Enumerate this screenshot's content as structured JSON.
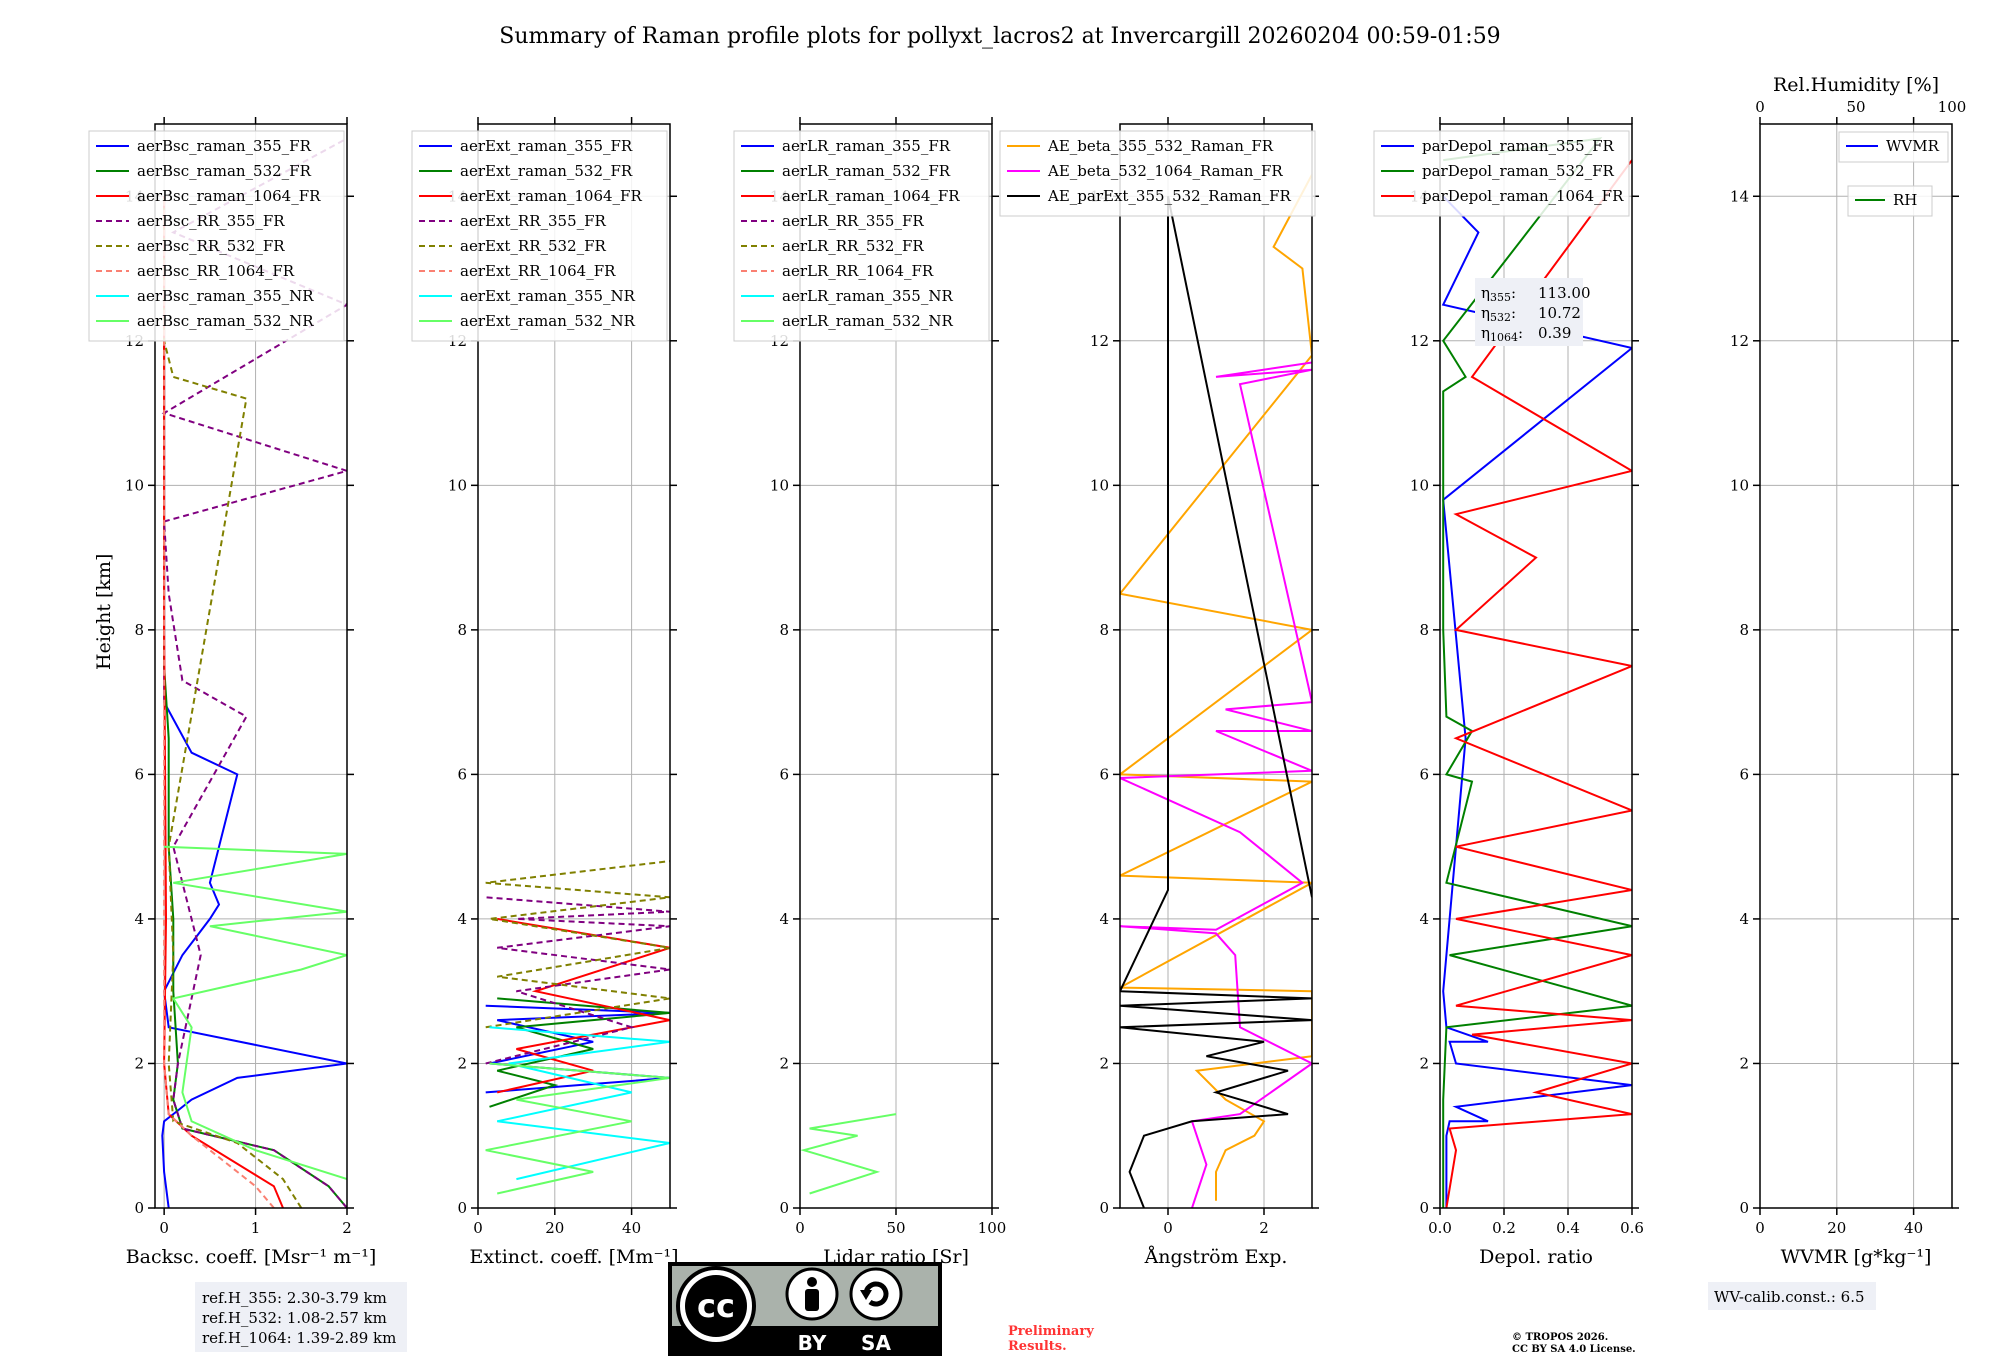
{
  "title": "Summary of Raman profile plots for pollyxt_lacros2 at Invercargill 20260204 00:59-01:59",
  "colors": {
    "blue": "#0000ff",
    "green": "#008000",
    "red": "#ff0000",
    "purple": "#800080",
    "olive": "#808000",
    "salmon": "#fa8072",
    "cyan": "#00ffff",
    "lightgreen": "#66ff66",
    "orange": "#ffa500",
    "magenta": "#ff00ff",
    "black": "#000000"
  },
  "chart_data": [
    {
      "type": "line",
      "title": "",
      "xlabel": "Backsc. coeff. [Msr⁻¹ m⁻¹]",
      "ylabel": "Height [km]",
      "xlim": [
        -0.1,
        2
      ],
      "ylim": [
        0,
        15
      ],
      "xticks": [
        "0",
        "1",
        "2"
      ],
      "yticks": [
        "0",
        "2",
        "4",
        "6",
        "8",
        "10",
        "12",
        "14"
      ],
      "legend": [
        "aerBsc_raman_355_FR",
        "aerBsc_raman_532_FR",
        "aerBsc_raman_1064_FR",
        "aerBsc_RR_355_FR",
        "aerBsc_RR_532_FR",
        "aerBsc_RR_1064_FR",
        "aerBsc_raman_355_NR",
        "aerBsc_raman_532_NR"
      ],
      "series": [
        {
          "name": "aerBsc_raman_355_FR",
          "color": "blue",
          "dash": false,
          "x": [
            0.05,
            0.0,
            -0.02,
            0.0,
            0.1,
            0.3,
            0.8,
            2.0,
            0.05,
            0.0,
            0.2,
            0.5,
            0.6,
            0.5,
            0.8,
            0.3,
            0.0,
            0.0,
            0.0,
            0.0,
            0.0,
            0.0
          ],
          "y": [
            0,
            0.5,
            1.0,
            1.2,
            1.3,
            1.5,
            1.8,
            2.0,
            2.5,
            3.0,
            3.5,
            4.0,
            4.2,
            4.5,
            6.0,
            6.3,
            7.0,
            8.0,
            9.5,
            11.0,
            12.0,
            14.0
          ]
        },
        {
          "name": "aerBsc_raman_532_FR",
          "color": "green",
          "dash": false,
          "x": [
            2.0,
            1.8,
            1.2,
            0.2,
            0.1,
            0.15,
            0.1,
            0.1,
            0.05,
            0.05,
            0.0,
            0.0,
            0.0,
            0.0
          ],
          "y": [
            0,
            0.3,
            0.8,
            1.1,
            1.5,
            2.0,
            3.0,
            4.0,
            5.0,
            6.5,
            7.5,
            9.0,
            11.5,
            14.0
          ]
        },
        {
          "name": "aerBsc_raman_1064_FR",
          "color": "red",
          "dash": false,
          "x": [
            1.3,
            1.2,
            0.3,
            0.05,
            0.0,
            0.02,
            0.01,
            0.0,
            0.0,
            0.0,
            0.0
          ],
          "y": [
            0,
            0.3,
            1.0,
            1.3,
            2.0,
            4.0,
            6.0,
            8.0,
            10.0,
            12.0,
            14.0
          ]
        },
        {
          "name": "aerBsc_RR_355_FR",
          "color": "purple",
          "dash": true,
          "x": [
            2.0,
            1.8,
            1.2,
            0.2,
            0.1,
            0.15,
            0.4,
            0.1,
            0.9,
            0.2,
            0.05,
            0.0,
            2.0,
            0.0,
            2.0,
            0.1,
            2.0
          ],
          "y": [
            0,
            0.3,
            0.8,
            1.1,
            1.5,
            2.0,
            3.5,
            5.0,
            6.8,
            7.3,
            8.5,
            9.5,
            10.2,
            11.0,
            12.5,
            13.5,
            14.8
          ]
        },
        {
          "name": "aerBsc_RR_532_FR",
          "color": "olive",
          "dash": true,
          "x": [
            1.5,
            1.3,
            0.8,
            0.1,
            0.05,
            0.1,
            0.05,
            0.9,
            0.1,
            0.0,
            0.0,
            0.0
          ],
          "y": [
            0,
            0.4,
            0.9,
            1.2,
            2.0,
            3.5,
            5.0,
            11.2,
            11.5,
            12.0,
            13.0,
            14.0
          ]
        },
        {
          "name": "aerBsc_RR_1064_FR",
          "color": "salmon",
          "dash": true,
          "x": [
            1.2,
            1.0,
            0.3,
            0.05,
            0.0,
            0.0
          ],
          "y": [
            0,
            0.3,
            1.0,
            1.3,
            2.0,
            14.0
          ]
        },
        {
          "name": "aerBsc_raman_355_NR",
          "color": "cyan",
          "dash": false,
          "x": [],
          "y": []
        },
        {
          "name": "aerBsc_raman_532_NR",
          "color": "lightgreen",
          "dash": false,
          "x": [
            2.0,
            1.0,
            0.3,
            0.2,
            0.3,
            0.1,
            1.5,
            2.0,
            0.5,
            2.0,
            0.1,
            2.0,
            0.0
          ],
          "y": [
            0.4,
            0.8,
            1.2,
            1.6,
            2.5,
            2.9,
            3.3,
            3.5,
            3.9,
            4.1,
            4.5,
            4.9,
            5.0
          ]
        }
      ]
    },
    {
      "type": "line",
      "xlabel": "Extinct. coeff. [Mm⁻¹]",
      "xlim": [
        0,
        50
      ],
      "ylim": [
        0,
        15
      ],
      "xticks": [
        "0",
        "20",
        "40"
      ],
      "yticks": [
        "0",
        "2",
        "4",
        "6",
        "8",
        "10",
        "12",
        "14"
      ],
      "legend": [
        "aerExt_raman_355_FR",
        "aerExt_raman_532_FR",
        "aerExt_raman_1064_FR",
        "aerExt_RR_355_FR",
        "aerExt_RR_532_FR",
        "aerExt_RR_1064_FR",
        "aerExt_raman_355_NR",
        "aerExt_raman_532_NR"
      ],
      "series": [
        {
          "name": "aerExt_raman_355_FR",
          "color": "blue",
          "dash": false,
          "x": [
            2,
            50,
            3,
            30,
            5,
            50,
            2
          ],
          "y": [
            1.6,
            1.8,
            2.0,
            2.3,
            2.6,
            2.7,
            2.8
          ]
        },
        {
          "name": "aerExt_raman_532_FR",
          "color": "green",
          "dash": false,
          "x": [
            3,
            20,
            5,
            30,
            10,
            50,
            5
          ],
          "y": [
            1.4,
            1.7,
            1.9,
            2.2,
            2.5,
            2.7,
            2.9
          ]
        },
        {
          "name": "aerExt_raman_1064_FR",
          "color": "red",
          "dash": false,
          "x": [
            5,
            30,
            10,
            50,
            15,
            50,
            5
          ],
          "y": [
            1.6,
            1.9,
            2.2,
            2.6,
            3.0,
            3.6,
            4.0
          ]
        },
        {
          "name": "aerExt_RR_355_FR",
          "color": "purple",
          "dash": true,
          "x": [
            2,
            40,
            10,
            50,
            5,
            50,
            10,
            50,
            2
          ],
          "y": [
            2.0,
            2.5,
            3.0,
            3.3,
            3.6,
            3.9,
            4.0,
            4.1,
            4.3
          ]
        },
        {
          "name": "aerExt_RR_532_FR",
          "color": "olive",
          "dash": true,
          "x": [
            2,
            50,
            5,
            50,
            3,
            50,
            2,
            50
          ],
          "y": [
            2.5,
            2.9,
            3.2,
            3.6,
            4.0,
            4.3,
            4.5,
            4.8
          ]
        },
        {
          "name": "aerExt_RR_1064_FR",
          "color": "salmon",
          "dash": true,
          "x": [],
          "y": []
        },
        {
          "name": "aerExt_raman_355_NR",
          "color": "cyan",
          "dash": false,
          "x": [
            10,
            50,
            5,
            40,
            8,
            50,
            3
          ],
          "y": [
            0.4,
            0.9,
            1.2,
            1.6,
            2.0,
            2.3,
            2.5
          ]
        },
        {
          "name": "aerExt_raman_532_NR",
          "color": "lightgreen",
          "dash": false,
          "x": [
            5,
            30,
            2,
            40,
            10,
            50,
            3
          ],
          "y": [
            0.2,
            0.5,
            0.8,
            1.2,
            1.5,
            1.8,
            2.0
          ]
        }
      ]
    },
    {
      "type": "line",
      "xlabel": "Lidar ratio [Sr]",
      "xlim": [
        0,
        100
      ],
      "ylim": [
        0,
        15
      ],
      "xticks": [
        "0",
        "50",
        "100"
      ],
      "yticks": [
        "0",
        "2",
        "4",
        "6",
        "8",
        "10",
        "12",
        "14"
      ],
      "legend": [
        "aerLR_raman_355_FR",
        "aerLR_raman_532_FR",
        "aerLR_raman_1064_FR",
        "aerLR_RR_355_FR",
        "aerLR_RR_532_FR",
        "aerLR_RR_1064_FR",
        "aerLR_raman_355_NR",
        "aerLR_raman_532_NR"
      ],
      "series": [
        {
          "name": "aerLR_raman_355_FR",
          "color": "blue",
          "dash": false,
          "x": [],
          "y": []
        },
        {
          "name": "aerLR_raman_532_FR",
          "color": "green",
          "dash": false,
          "x": [],
          "y": []
        },
        {
          "name": "aerLR_raman_1064_FR",
          "color": "red",
          "dash": false,
          "x": [],
          "y": []
        },
        {
          "name": "aerLR_RR_355_FR",
          "color": "purple",
          "dash": true,
          "x": [],
          "y": []
        },
        {
          "name": "aerLR_RR_532_FR",
          "color": "olive",
          "dash": true,
          "x": [],
          "y": []
        },
        {
          "name": "aerLR_RR_1064_FR",
          "color": "salmon",
          "dash": true,
          "x": [],
          "y": []
        },
        {
          "name": "aerLR_raman_355_NR",
          "color": "cyan",
          "dash": false,
          "x": [],
          "y": []
        },
        {
          "name": "aerLR_raman_532_NR",
          "color": "lightgreen",
          "dash": false,
          "x": [
            5,
            40,
            2,
            30,
            5,
            50
          ],
          "y": [
            0.2,
            0.5,
            0.8,
            1.0,
            1.1,
            1.3
          ]
        }
      ]
    },
    {
      "type": "line",
      "xlabel": "Ångström Exp.",
      "xlim": [
        -1,
        3
      ],
      "ylim": [
        0,
        15
      ],
      "xticks": [
        "0",
        "2"
      ],
      "yticks": [
        "0",
        "2",
        "4",
        "6",
        "8",
        "10",
        "12",
        "14"
      ],
      "legend": [
        "AE_beta_355_532_Raman_FR",
        "AE_beta_532_1064_Raman_FR",
        "AE_parExt_355_532_Raman_FR"
      ],
      "series": [
        {
          "name": "AE_beta_355_532_Raman_FR",
          "color": "orange",
          "dash": false,
          "x": [
            1.0,
            1.0,
            1.2,
            1.8,
            2.0,
            1.2,
            0.6,
            3.0,
            3.0,
            -1.0,
            3.0,
            -1.0,
            3.0,
            -1.0,
            3.0,
            -1.0,
            3.0,
            2.8,
            2.2,
            3.0
          ],
          "y": [
            0.1,
            0.5,
            0.8,
            1.0,
            1.2,
            1.5,
            1.9,
            2.1,
            3.0,
            3.05,
            4.5,
            4.6,
            5.9,
            6.0,
            8.0,
            8.5,
            11.8,
            13.0,
            13.3,
            14.3
          ]
        },
        {
          "name": "AE_beta_532_1064_Raman_FR",
          "color": "magenta",
          "dash": false,
          "x": [
            0.5,
            0.8,
            0.5,
            1.5,
            3.0,
            1.5,
            1.4,
            1.0,
            -1.0,
            1.0,
            2.8,
            1.5,
            -1.0,
            3.0,
            1.0,
            3.0,
            1.2,
            3.0,
            1.5,
            3.0,
            1.0,
            3.0
          ],
          "y": [
            0,
            0.6,
            1.2,
            1.3,
            2.0,
            2.5,
            3.5,
            3.8,
            3.9,
            3.85,
            4.5,
            5.2,
            5.95,
            6.05,
            6.6,
            6.6,
            6.9,
            7.0,
            11.4,
            11.6,
            11.5,
            11.7
          ]
        },
        {
          "name": "AE_parExt_355_532_Raman_FR",
          "color": "black",
          "dash": false,
          "x": [
            -0.5,
            -0.8,
            -0.5,
            0.5,
            2.5,
            1.5,
            1.0,
            2.5,
            0.8,
            2.0,
            -1.0,
            3.0,
            -1.0,
            3.0,
            -1.0,
            0.0,
            0.0,
            3.0
          ],
          "y": [
            0,
            0.5,
            1.0,
            1.2,
            1.3,
            1.5,
            1.6,
            1.9,
            2.1,
            2.3,
            2.5,
            2.6,
            2.8,
            2.9,
            3.0,
            4.4,
            14.0,
            4.3
          ]
        }
      ]
    },
    {
      "type": "line",
      "xlabel": "Depol. ratio",
      "xlim": [
        0,
        0.6
      ],
      "ylim": [
        0,
        15
      ],
      "xticks": [
        "0.0",
        "0.2",
        "0.4",
        "0.6"
      ],
      "yticks": [
        "0",
        "2",
        "4",
        "6",
        "8",
        "10",
        "12",
        "14"
      ],
      "legend": [
        "parDepol_raman_355_FR",
        "parDepol_raman_532_FR",
        "parDepol_raman_1064_FR"
      ],
      "annotation": {
        "eta355": "113.00",
        "eta532": "10.72",
        "eta1064": "0.39"
      },
      "series": [
        {
          "name": "parDepol_raman_355_FR",
          "color": "blue",
          "dash": false,
          "x": [
            0.02,
            0.02,
            0.03,
            0.15,
            0.05,
            0.6,
            0.05,
            0.03,
            0.15,
            0.02,
            0.01,
            0.08,
            0.01,
            0.6,
            0.01,
            0.12,
            0.01
          ],
          "y": [
            0,
            1.0,
            1.2,
            1.2,
            1.4,
            1.7,
            2.0,
            2.3,
            2.3,
            2.5,
            3.0,
            6.5,
            9.8,
            11.9,
            12.5,
            13.5,
            14.0
          ]
        },
        {
          "name": "parDepol_raman_532_FR",
          "color": "green",
          "dash": false,
          "x": [
            0.01,
            0.01,
            0.02,
            0.6,
            0.03,
            0.6,
            0.02,
            0.1,
            0.02,
            0.1,
            0.02,
            0.01,
            0.01,
            0.08,
            0.01,
            0.5,
            0.01
          ],
          "y": [
            0,
            1.5,
            2.5,
            2.8,
            3.5,
            3.9,
            4.5,
            5.9,
            6.0,
            6.6,
            6.8,
            8.0,
            11.3,
            11.5,
            12.0,
            14.8,
            14.5
          ]
        },
        {
          "name": "parDepol_raman_1064_FR",
          "color": "red",
          "dash": false,
          "x": [
            0.02,
            0.05,
            0.03,
            0.6,
            0.3,
            0.6,
            0.1,
            0.6,
            0.05,
            0.6,
            0.05,
            0.6,
            0.05,
            0.6,
            0.05,
            0.6,
            0.05,
            0.3,
            0.05,
            0.6,
            0.1,
            0.6
          ],
          "y": [
            0,
            0.8,
            1.1,
            1.3,
            1.6,
            2.0,
            2.4,
            2.6,
            2.8,
            3.5,
            4.0,
            4.4,
            5.0,
            5.5,
            6.5,
            7.5,
            8.0,
            9.0,
            9.6,
            10.2,
            11.5,
            14.5
          ]
        }
      ]
    },
    {
      "type": "line",
      "xlabel": "WVMR [g*kg⁻¹]",
      "xlim": [
        0,
        50
      ],
      "ylim": [
        0,
        15
      ],
      "xticks": [
        "0",
        "20",
        "40"
      ],
      "yticks": [
        "0",
        "2",
        "4",
        "6",
        "8",
        "10",
        "12",
        "14"
      ],
      "top_axis_label": "Rel.Humidity [%]",
      "top_xlim": [
        0,
        100
      ],
      "top_xticks": [
        "0",
        "50",
        "100"
      ],
      "legend": [
        "WVMR",
        "RH"
      ],
      "series": [
        {
          "name": "WVMR",
          "color": "blue",
          "dash": false,
          "x": [],
          "y": []
        },
        {
          "name": "RH",
          "color": "green",
          "dash": false,
          "x": [],
          "y": []
        }
      ]
    }
  ],
  "footer": {
    "ref_h_355": "ref.H_355: 2.30-3.79 km",
    "ref_h_532": "ref.H_532: 1.08-2.57 km",
    "ref_h_1064": "ref.H_1064: 1.39-2.89 km",
    "preliminary_1": "Preliminary",
    "preliminary_2": "Results.",
    "copyright_1": "© TROPOS 2026.",
    "copyright_2": "CC BY SA 4.0 License.",
    "wv_calib": "WV-calib.const.: 6.5",
    "cc_by": "BY",
    "cc_sa": "SA",
    "cc_mark": "cc"
  }
}
